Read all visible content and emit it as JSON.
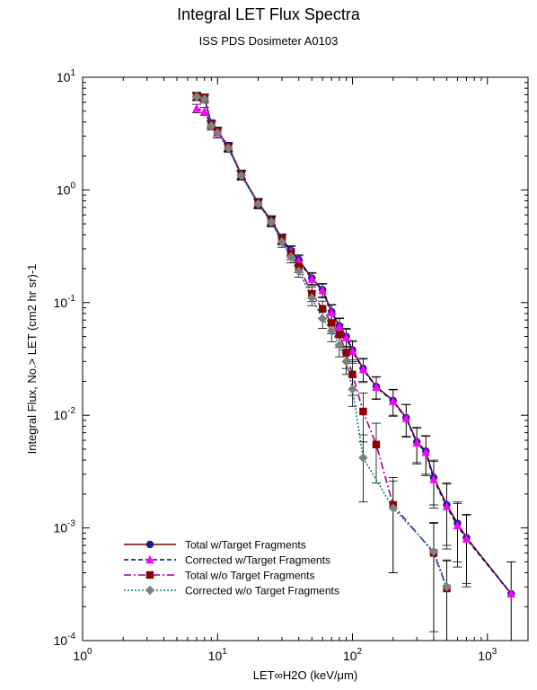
{
  "chart_data": {
    "type": "line",
    "title": "Integral LET Flux Spectra",
    "subtitle": "ISS PDS Dosimeter A0103",
    "xlabel": "LET∞H2O (keV/μm)",
    "ylabel": "Integral Flux, No.> LET  (cm2 hr sr)-1",
    "xscale": "log",
    "yscale": "log",
    "xlim": [
      1,
      2000
    ],
    "ylim": [
      0.0001,
      10
    ],
    "x_ticks": [
      1,
      10,
      100,
      1000
    ],
    "y_ticks": [
      0.0001,
      0.001,
      0.01,
      0.1,
      1,
      10
    ],
    "legend_position": "bottom-left",
    "series": [
      {
        "name": "Total w/Target Fragments",
        "color": "#8B0000",
        "line_style": "solid",
        "marker": "circle",
        "marker_color": "#1a1a8c",
        "x": [
          7,
          8,
          9,
          10,
          12,
          15,
          20,
          25,
          30,
          35,
          40,
          50,
          60,
          70,
          80,
          90,
          100,
          120,
          150,
          200,
          250,
          300,
          350,
          400,
          500,
          600,
          700,
          1500
        ],
        "y": [
          6.8,
          6.6,
          3.9,
          3.3,
          2.45,
          1.38,
          0.77,
          0.54,
          0.37,
          0.29,
          0.24,
          0.165,
          0.13,
          0.083,
          0.062,
          0.05,
          0.038,
          0.026,
          0.018,
          0.0135,
          0.0095,
          0.0058,
          0.0048,
          0.0028,
          0.0016,
          0.0011,
          0.00082,
          0.00026
        ],
        "y_err": [
          0.55,
          0.5,
          0.3,
          0.3,
          0.2,
          0.12,
          0.07,
          0.05,
          0.035,
          0.03,
          0.025,
          0.02,
          0.018,
          0.013,
          0.011,
          0.009,
          0.008,
          0.006,
          0.004,
          0.0035,
          0.003,
          0.002,
          0.0018,
          0.0012,
          0.0009,
          0.0006,
          0.0005,
          0.00024
        ]
      },
      {
        "name": "Corrected w/Target Fragments",
        "color": "#00008B",
        "line_style": "dashed",
        "marker": "triangle",
        "marker_color": "#ff00ff",
        "x": [
          7,
          8,
          9,
          10,
          12,
          15,
          20,
          25,
          30,
          35,
          40,
          50,
          60,
          70,
          80,
          90,
          100,
          120,
          150,
          200,
          250,
          300,
          350,
          400,
          500,
          600,
          700,
          1500
        ],
        "y": [
          5.3,
          5.0,
          3.8,
          3.2,
          2.4,
          1.36,
          0.76,
          0.53,
          0.365,
          0.285,
          0.235,
          0.162,
          0.128,
          0.082,
          0.061,
          0.049,
          0.037,
          0.0255,
          0.0178,
          0.0133,
          0.0094,
          0.0057,
          0.0047,
          0.0027,
          0.00155,
          0.00105,
          0.0008,
          0.00026
        ],
        "y_err": [
          0.45,
          0.4,
          0.3,
          0.3,
          0.2,
          0.12,
          0.07,
          0.05,
          0.035,
          0.03,
          0.025,
          0.02,
          0.018,
          0.013,
          0.011,
          0.009,
          0.008,
          0.006,
          0.004,
          0.0035,
          0.003,
          0.002,
          0.0018,
          0.0012,
          0.0009,
          0.0006,
          0.0005,
          0.00024
        ]
      },
      {
        "name": "Total w/o Target Fragments",
        "color": "#9B009B",
        "line_style": "dashdot",
        "marker": "square",
        "marker_color": "#8B0000",
        "x": [
          7,
          8,
          9,
          10,
          12,
          15,
          20,
          25,
          30,
          35,
          40,
          50,
          60,
          70,
          80,
          90,
          100,
          120,
          150,
          200,
          400,
          500
        ],
        "y": [
          6.8,
          6.6,
          3.8,
          3.3,
          2.4,
          1.36,
          0.76,
          0.53,
          0.36,
          0.27,
          0.21,
          0.12,
          0.088,
          0.066,
          0.052,
          0.036,
          0.023,
          0.0108,
          0.0055,
          0.0016,
          0.0006,
          0.00029
        ],
        "y_err": [
          0.55,
          0.5,
          0.3,
          0.3,
          0.2,
          0.12,
          0.07,
          0.05,
          0.035,
          0.03,
          0.025,
          0.018,
          0.015,
          0.013,
          0.012,
          0.01,
          0.008,
          0.005,
          0.003,
          0.0012,
          0.0005,
          0.00022
        ]
      },
      {
        "name": "Corrected w/o Target Fragments",
        "color": "#008080",
        "line_style": "dotted",
        "marker": "diamond",
        "marker_color": "#808080",
        "x": [
          7,
          8,
          9,
          10,
          12,
          15,
          20,
          25,
          30,
          35,
          40,
          50,
          60,
          70,
          80,
          90,
          100,
          120,
          200,
          400,
          500
        ],
        "y": [
          6.7,
          6.4,
          3.7,
          3.2,
          2.35,
          1.34,
          0.75,
          0.52,
          0.345,
          0.255,
          0.19,
          0.11,
          0.072,
          0.056,
          0.042,
          0.03,
          0.017,
          0.0042,
          0.0015,
          0.00062,
          0.0003
        ],
        "y_err": [
          0.5,
          0.5,
          0.3,
          0.3,
          0.2,
          0.12,
          0.07,
          0.05,
          0.035,
          0.03,
          0.022,
          0.016,
          0.013,
          0.011,
          0.009,
          0.007,
          0.005,
          0.0025,
          0.0011,
          0.0005,
          0.00022
        ]
      }
    ]
  }
}
